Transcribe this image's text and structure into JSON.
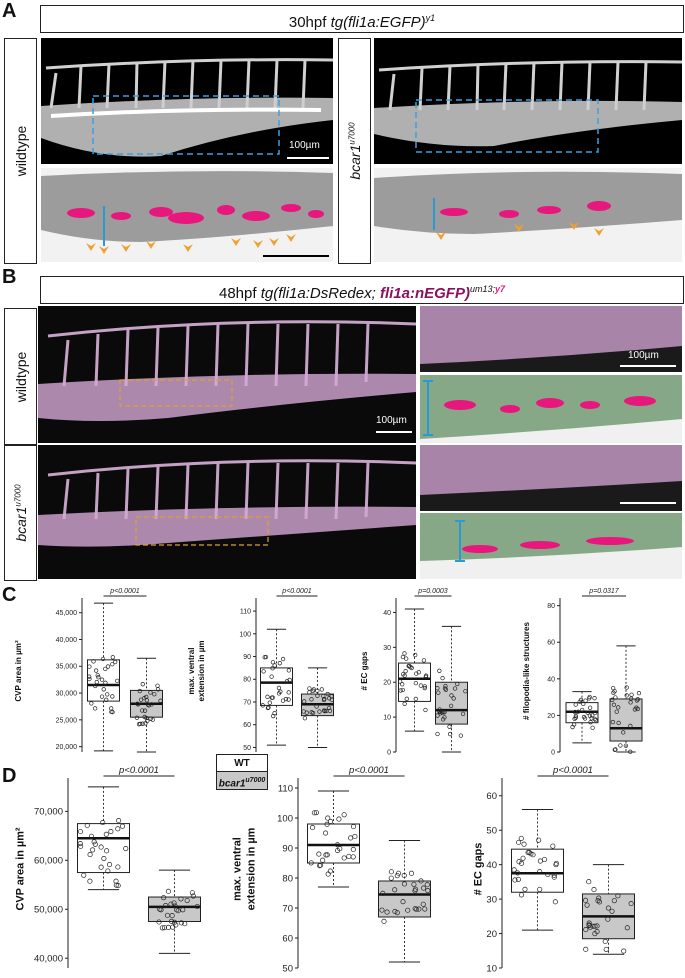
{
  "panels": {
    "A": {
      "letter": "A",
      "title_prefix": "30hpf ",
      "title_italic": "tg(fli1a:EGFP)",
      "title_sup": "y1",
      "label_wt": "wildtype",
      "label_mut_base": "bcar1",
      "label_mut_sup": "u7000",
      "scale_label": "100µm"
    },
    "B": {
      "letter": "B",
      "title_prefix": "48hpf ",
      "title_italic": "tg(fli1a:DsRedex;",
      "title_italic2": "fli1a:nEGFP)",
      "title_sup1": "um13;",
      "title_sup2": "y7",
      "label_wt": "wildtype",
      "label_mut_base": "bcar1",
      "label_mut_sup": "u7000",
      "scale_label": "100µm",
      "scale_label_inset": "100µm"
    },
    "C": {
      "letter": "C"
    },
    "D": {
      "letter": "D"
    }
  },
  "legend": {
    "wt": "WT",
    "mut_base": "bcar1",
    "mut_sup": "u7000"
  },
  "colors": {
    "wt_box": "#ffffff",
    "mut_box": "#c8c8c8",
    "arrow": "#f0a030",
    "magenta": "#e8177d",
    "bracket": "#2a9ad6",
    "roi_blue": "#3aa0e0",
    "roi_orange": "#e0a030"
  },
  "chart_data": [
    {
      "id": "C1",
      "type": "box",
      "ylabel": "CVP area in µm²",
      "pvalue": "p<0.0001",
      "ylim": [
        19000,
        47000
      ],
      "yticks": [
        20000,
        25000,
        30000,
        35000,
        40000,
        45000
      ],
      "ytick_labels": [
        "20,000",
        "25,000",
        "30,000",
        "35,000",
        "40,000",
        "45,000"
      ],
      "series": [
        {
          "group": "WT",
          "whisker_low": 19200,
          "q1": 28500,
          "median": 31500,
          "q3": 36200,
          "whisker_high": 46800
        },
        {
          "group": "bcar1",
          "whisker_low": 19000,
          "q1": 25500,
          "median": 28000,
          "q3": 30500,
          "whisker_high": 36500
        }
      ]
    },
    {
      "id": "C2",
      "type": "box",
      "ylabel": "max. ventral\nextension in µm",
      "pvalue": "p<0.0001",
      "ylim": [
        48,
        114
      ],
      "yticks": [
        50,
        60,
        70,
        80,
        90,
        100,
        110
      ],
      "ytick_labels": [
        "50",
        "60",
        "70",
        "80",
        "90",
        "100",
        "110"
      ],
      "series": [
        {
          "group": "WT",
          "whisker_low": 51,
          "q1": 68.5,
          "median": 78.5,
          "q3": 85,
          "whisker_high": 102
        },
        {
          "group": "bcar1",
          "whisker_low": 50,
          "q1": 64,
          "median": 69,
          "q3": 73.5,
          "whisker_high": 85
        }
      ]
    },
    {
      "id": "C3",
      "type": "box",
      "ylabel": "# EC gaps",
      "pvalue": "p=0.0003",
      "ylim": [
        0,
        43
      ],
      "yticks": [
        0,
        10,
        20,
        30,
        40
      ],
      "ytick_labels": [
        "0",
        "10",
        "20",
        "30",
        "40"
      ],
      "series": [
        {
          "group": "WT",
          "whisker_low": 6,
          "q1": 14.5,
          "median": 21,
          "q3": 25.5,
          "whisker_high": 41
        },
        {
          "group": "bcar1",
          "whisker_low": 0,
          "q1": 8,
          "median": 12,
          "q3": 20,
          "whisker_high": 36
        }
      ]
    },
    {
      "id": "C4",
      "type": "box",
      "ylabel": "# filopodia-like structures",
      "pvalue": "p=0.0317",
      "ylim": [
        0,
        82
      ],
      "yticks": [
        0,
        20,
        40,
        60,
        80
      ],
      "ytick_labels": [
        "0",
        "20",
        "40",
        "60",
        "80"
      ],
      "series": [
        {
          "group": "WT",
          "whisker_low": 5,
          "q1": 16,
          "median": 22,
          "q3": 27,
          "whisker_high": 33
        },
        {
          "group": "bcar1",
          "whisker_low": 0,
          "q1": 6,
          "median": 13,
          "q3": 29,
          "whisker_high": 58
        }
      ]
    },
    {
      "id": "D1",
      "type": "box",
      "ylabel": "CVP area in µm²",
      "pvalue": "p<0.0001",
      "ylim": [
        38000,
        76000
      ],
      "yticks": [
        40000,
        50000,
        60000,
        70000
      ],
      "ytick_labels": [
        "40,000",
        "50,000",
        "60,000",
        "70,000"
      ],
      "series": [
        {
          "group": "WT",
          "whisker_low": 54000,
          "q1": 57500,
          "median": 64500,
          "q3": 67500,
          "whisker_high": 75000
        },
        {
          "group": "bcar1",
          "whisker_low": 41000,
          "q1": 47500,
          "median": 50500,
          "q3": 52500,
          "whisker_high": 58000
        }
      ]
    },
    {
      "id": "D2",
      "type": "box",
      "ylabel": "max. ventral\nextension in µm",
      "pvalue": "p<0.0001",
      "ylim": [
        50,
        112
      ],
      "yticks": [
        50,
        60,
        70,
        80,
        90,
        100,
        110
      ],
      "ytick_labels": [
        "50",
        "60",
        "70",
        "80",
        "90",
        "100",
        "110"
      ],
      "series": [
        {
          "group": "WT",
          "whisker_low": 77,
          "q1": 85,
          "median": 91,
          "q3": 98,
          "whisker_high": 109
        },
        {
          "group": "bcar1",
          "whisker_low": 52,
          "q1": 67,
          "median": 74.5,
          "q3": 79,
          "whisker_high": 92.5
        }
      ]
    },
    {
      "id": "D3",
      "type": "box",
      "ylabel": "# EC gaps",
      "pvalue": "p<0.0001",
      "ylim": [
        10,
        64
      ],
      "yticks": [
        10,
        20,
        30,
        40,
        50,
        60
      ],
      "ytick_labels": [
        "10",
        "20",
        "30",
        "40",
        "50",
        "60"
      ],
      "series": [
        {
          "group": "WT",
          "whisker_low": 21,
          "q1": 32,
          "median": 37.5,
          "q3": 44.5,
          "whisker_high": 56
        },
        {
          "group": "bcar1",
          "whisker_low": 14,
          "q1": 18.5,
          "median": 25,
          "q3": 31.5,
          "whisker_high": 40
        }
      ]
    }
  ]
}
